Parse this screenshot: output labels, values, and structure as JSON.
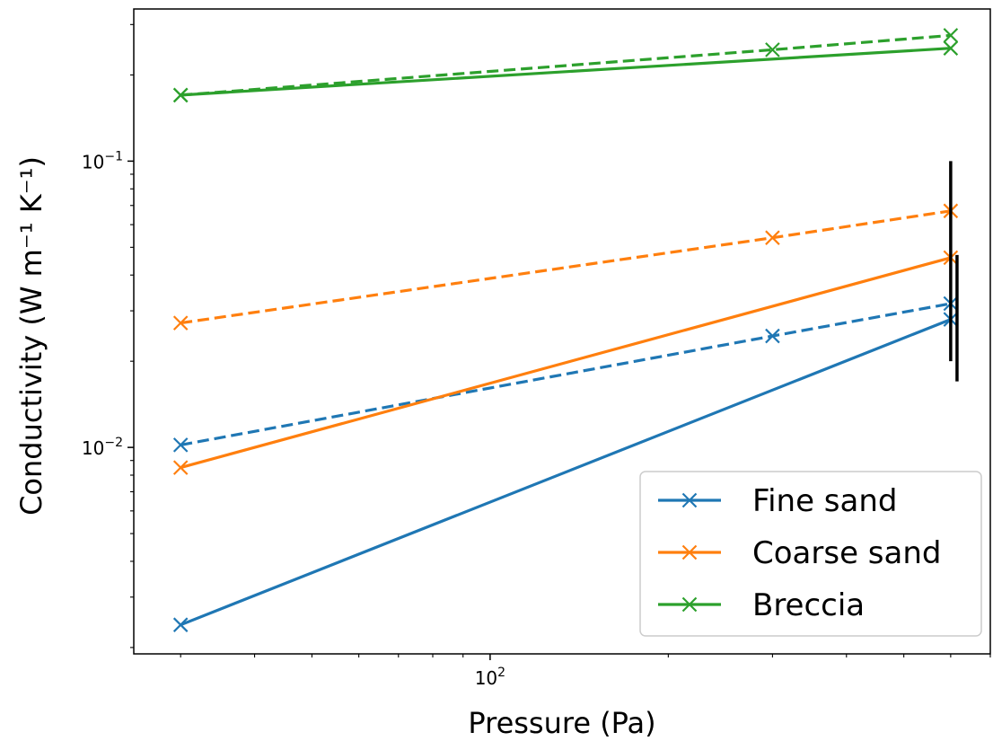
{
  "chart_data": {
    "type": "line",
    "xlabel": "Pressure (Pa)",
    "ylabel": "Conductivity (W m⁻¹ K⁻¹)",
    "xscale": "log",
    "yscale": "log",
    "xlim": [
      25,
      700
    ],
    "ylim": [
      0.0019,
      0.34
    ],
    "grid": false,
    "legend_position": "lower right",
    "x_tick_labels": [
      {
        "value": 100,
        "base": "10",
        "exp": "2"
      }
    ],
    "y_tick_labels": [
      {
        "value": 0.01,
        "base": "10",
        "exp": "−2"
      },
      {
        "value": 0.1,
        "base": "10",
        "exp": "−1"
      }
    ],
    "series": [
      {
        "name": "Fine sand",
        "color": "#1f77b4",
        "style": "solid",
        "marker": "x",
        "x": [
          30,
          600
        ],
        "y": [
          0.0024,
          0.028
        ]
      },
      {
        "name": "",
        "color": "#1f77b4",
        "style": "dashed",
        "marker": "x",
        "x": [
          30,
          300,
          600
        ],
        "y": [
          0.0102,
          0.0245,
          0.0318
        ]
      },
      {
        "name": "Coarse sand",
        "color": "#ff7f0e",
        "style": "solid",
        "marker": "x",
        "x": [
          30,
          600
        ],
        "y": [
          0.0085,
          0.046
        ]
      },
      {
        "name": "",
        "color": "#ff7f0e",
        "style": "dashed",
        "marker": "x",
        "x": [
          30,
          300,
          600
        ],
        "y": [
          0.0272,
          0.054,
          0.067
        ]
      },
      {
        "name": "Breccia",
        "color": "#2ca02c",
        "style": "solid",
        "marker": "x",
        "x": [
          30,
          600
        ],
        "y": [
          0.17,
          0.248
        ]
      },
      {
        "name": "",
        "color": "#2ca02c",
        "style": "dashed",
        "marker": "x",
        "x": [
          30,
          300,
          600
        ],
        "y": [
          0.17,
          0.245,
          0.275
        ]
      }
    ],
    "error_bars": [
      {
        "x": 600,
        "low": 0.02,
        "high": 0.1
      },
      {
        "x": 615,
        "low": 0.017,
        "high": 0.047
      }
    ],
    "legend": [
      "Fine sand",
      "Coarse sand",
      "Breccia"
    ]
  }
}
